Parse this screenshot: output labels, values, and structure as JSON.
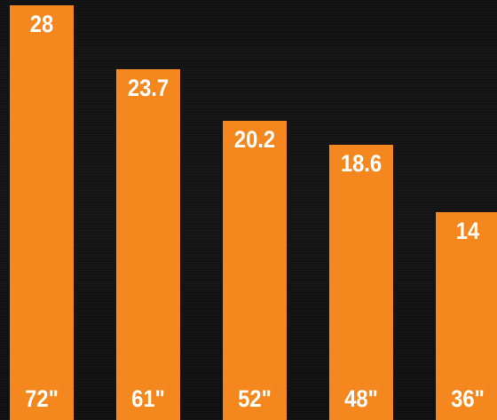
{
  "colors": {
    "background": "#121212",
    "bar": "#f5871f",
    "text": "#ffffff"
  },
  "chart_data": {
    "type": "bar",
    "title": "",
    "xlabel": "",
    "ylabel": "",
    "categories": [
      "72\"",
      "61\"",
      "52\"",
      "48\"",
      "36\""
    ],
    "values": [
      28,
      23.7,
      20.2,
      18.6,
      14
    ],
    "value_labels": [
      "28",
      "23.7",
      "20.2",
      "18.6",
      "14"
    ],
    "ylim": [
      0,
      28
    ],
    "grid": false,
    "legend": "none"
  }
}
